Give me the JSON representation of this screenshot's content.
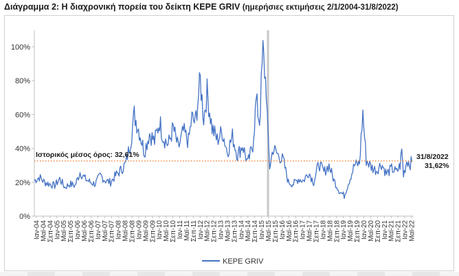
{
  "title_main": "Διάγραμμα 2: Η διαχρονική πορεία του δείκτη ΚΕΡΕ GRIV",
  "title_sub": "(ημερήσιες εκτιμήσεις 2/1/2004-31/8/2022)",
  "chart_data": {
    "type": "line",
    "title": "Διάγραμμα 2: Η διαχρονική πορεία του δείκτη ΚΕΡΕ GRIV (ημερήσιες εκτιμήσεις 2/1/2004-31/8/2022)",
    "ylim": [
      0,
      110
    ],
    "yticks": [
      0,
      20,
      40,
      60,
      80,
      100
    ],
    "ytick_labels": [
      "0%",
      "20%",
      "40%",
      "60%",
      "80%",
      "100%"
    ],
    "grid": false,
    "legend_position": "bottom",
    "xtick_labels": [
      "Ιαν-04",
      "Μαϊ-04",
      "Σεπ-04",
      "Ιαν-05",
      "Μαϊ-05",
      "Σεπ-05",
      "Ιαν-06",
      "Μαϊ-06",
      "Σεπ-06",
      "Ιαν-07",
      "Μαϊ-07",
      "Σεπ-07",
      "Ιαν-08",
      "Μαϊ-08",
      "Σεπ-08",
      "Ιαν-09",
      "Μαϊ-09",
      "Σεπ-09",
      "Ιαν-10",
      "Μαϊ-10",
      "Σεπ-10",
      "Ιαν-11",
      "Μαϊ-11",
      "Σεπ-11",
      "Ιαν-12",
      "Μαϊ-12",
      "Σεπ-12",
      "Ιαν-13",
      "Μαϊ-13",
      "Σεπ-13",
      "Ιαν-14",
      "Μαϊ-14",
      "Σεπ-14",
      "Ιαν-15",
      "Μαϊ-15",
      "Σεπ-15",
      "Ιαν-16",
      "Μαϊ-16",
      "Σεπ-16",
      "Ιαν-17",
      "Μαϊ-17",
      "Σεπ-17",
      "Ιαν-18",
      "Μαϊ-18",
      "Σεπ-18",
      "Ιαν-19",
      "Μαϊ-19",
      "Σεπ-19",
      "Ιαν-20",
      "Μαϊ-20",
      "Σεπ-20",
      "Ιαν-21",
      "Μαϊ-21",
      "Σεπ-21",
      "Ιαν-22",
      "Μαϊ-22"
    ],
    "series": [
      {
        "name": "ΚΕΡΕ GRIV",
        "color": "#4472c4",
        "x": [
          "2004-01",
          "2004-04",
          "2004-07",
          "2004-10",
          "2005-01",
          "2005-04",
          "2005-07",
          "2005-10",
          "2006-01",
          "2006-04",
          "2006-07",
          "2006-10",
          "2007-01",
          "2007-04",
          "2007-07",
          "2007-10",
          "2008-01",
          "2008-04",
          "2008-07",
          "2008-10",
          "2008-12",
          "2009-03",
          "2009-06",
          "2009-09",
          "2009-12",
          "2010-03",
          "2010-05",
          "2010-08",
          "2010-11",
          "2011-02",
          "2011-05",
          "2011-08",
          "2011-10",
          "2011-12",
          "2012-03",
          "2012-05",
          "2012-07",
          "2012-10",
          "2013-01",
          "2013-04",
          "2013-07",
          "2013-10",
          "2014-01",
          "2014-04",
          "2014-07",
          "2014-10",
          "2014-12",
          "2015-02",
          "2015-04",
          "2015-06",
          "2015-07",
          "2015-08",
          "2015-10",
          "2016-01",
          "2016-04",
          "2016-07",
          "2016-10",
          "2017-01",
          "2017-04",
          "2017-07",
          "2017-10",
          "2018-01",
          "2018-04",
          "2018-07",
          "2018-10",
          "2019-01",
          "2019-04",
          "2019-07",
          "2019-10",
          "2020-01",
          "2020-03",
          "2020-05",
          "2020-08",
          "2020-11",
          "2021-02",
          "2021-05",
          "2021-08",
          "2021-11",
          "2022-01",
          "2022-02",
          "2022-03",
          "2022-05",
          "2022-07",
          "2022-08"
        ],
        "values": [
          21,
          23,
          20,
          19,
          18,
          22,
          17,
          19,
          18,
          26,
          22,
          20,
          19,
          24,
          21,
          20,
          24,
          27,
          31,
          45,
          60,
          50,
          38,
          49,
          44,
          56,
          47,
          42,
          52,
          40,
          50,
          44,
          58,
          55,
          80,
          58,
          73,
          52,
          45,
          50,
          38,
          47,
          36,
          42,
          31,
          42,
          68,
          56,
          97,
          75,
          46,
          29,
          40,
          36,
          33,
          20,
          19,
          22,
          21,
          26,
          20,
          31,
          26,
          30,
          21,
          15,
          12,
          21,
          30,
          31,
          61,
          33,
          29,
          27,
          31,
          25,
          28,
          26,
          30,
          39,
          24,
          33,
          31,
          32
        ]
      }
    ],
    "reference_line": {
      "value": 32.61,
      "label": "Ιστορικός μέσος όρος: 32,61%",
      "color": "#ed7d31"
    },
    "event_band_label_x": "2015-07",
    "end_annotation": {
      "date": "31/8/2022",
      "value_label": "31,62%"
    },
    "legend": [
      "ΚΕΡΕ GRIV"
    ]
  }
}
